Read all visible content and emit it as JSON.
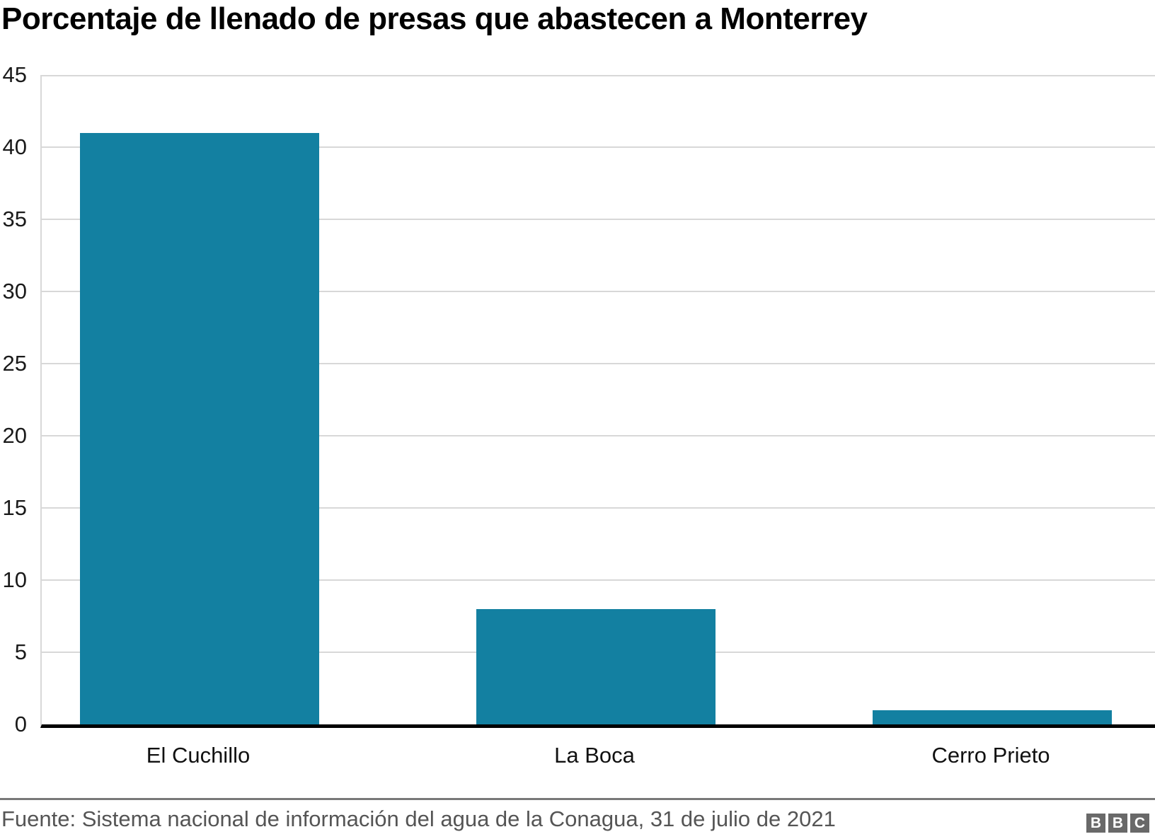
{
  "title": "Porcentaje de llenado de presas que abastecen a Monterrey",
  "chart_data": {
    "type": "bar",
    "title": "Porcentaje de llenado de presas que abastecen a Monterrey",
    "categories": [
      "El Cuchillo",
      "La Boca",
      "Cerro Prieto"
    ],
    "values": [
      41,
      8,
      1
    ],
    "xlabel": "",
    "ylabel": "",
    "ylim": [
      0,
      45
    ],
    "yticks": [
      0,
      5,
      10,
      15,
      20,
      25,
      30,
      35,
      40,
      45
    ],
    "grid": "horizontal-only",
    "legend": "none",
    "bar_color": "#1380a1",
    "gridline_color": "#d8d8d8",
    "axis_color": "#000000"
  },
  "footer": {
    "source": "Fuente: Sistema nacional de información del agua de la Conagua, 31 de julio de 2021",
    "logo_letters": [
      "B",
      "B",
      "C"
    ],
    "divider_color": "#787878",
    "text_color": "#555555",
    "logo_bg": "#696969"
  }
}
